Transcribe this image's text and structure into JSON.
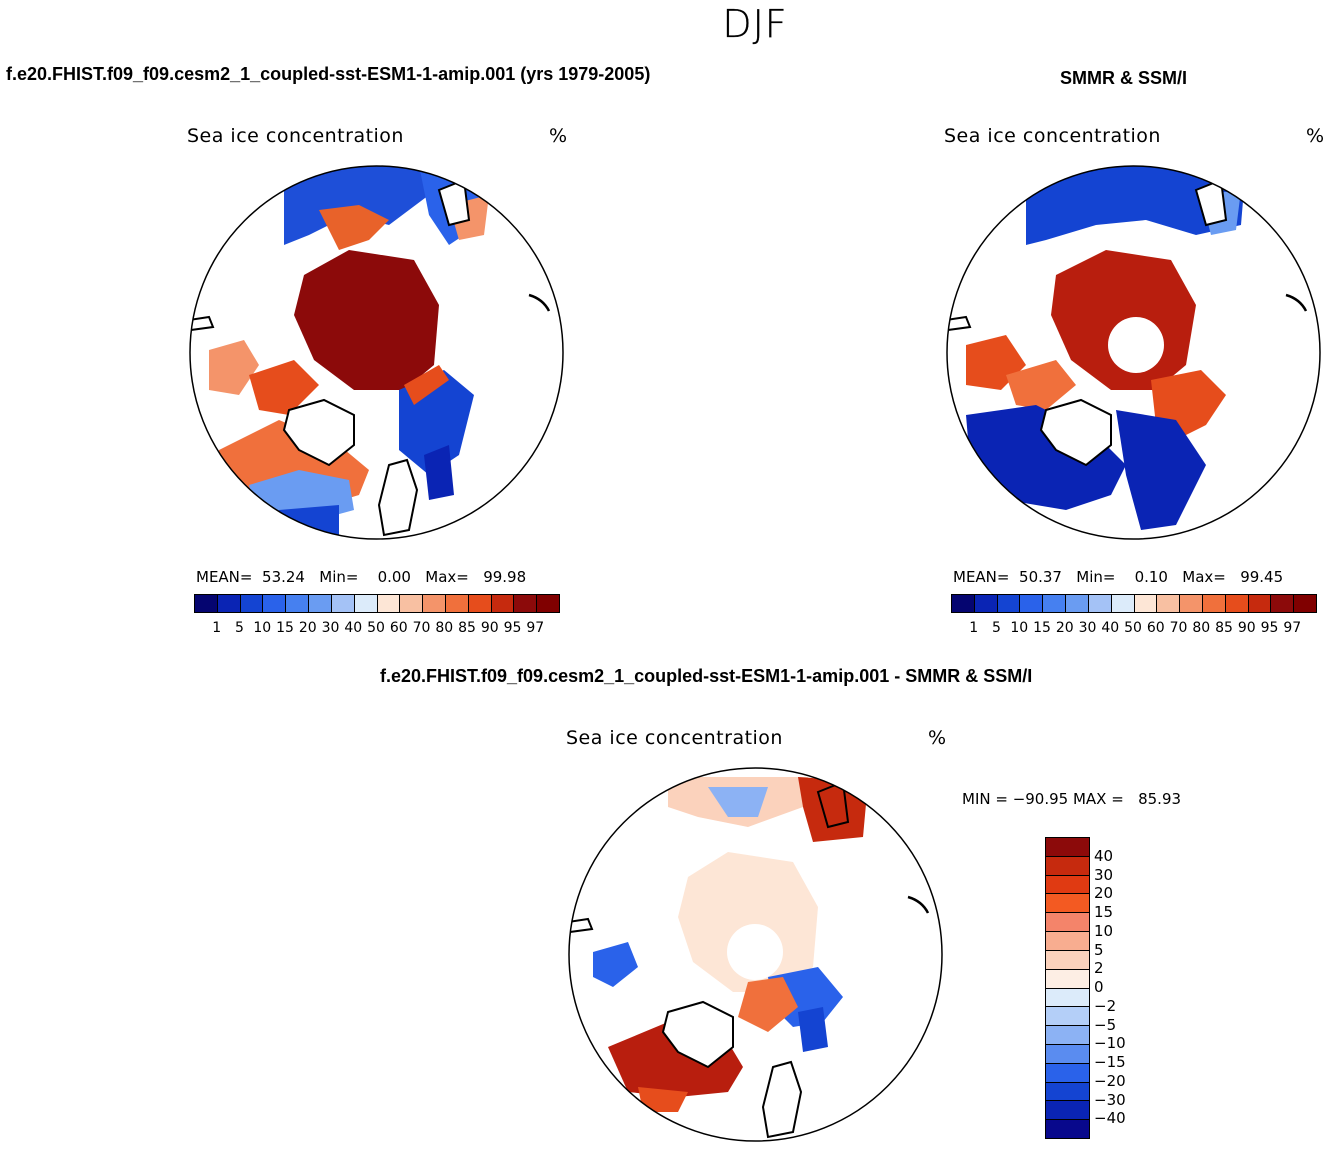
{
  "season": "DJF",
  "panels": [
    {
      "title": "f.e20.FHIST.f09_f09.cesm2_1_coupled-sst-ESM1-1-amip.001 (yrs 1979-2005)",
      "variable": "Sea ice concentration",
      "units": "%",
      "stats": {
        "mean_label": "MEAN=",
        "mean": "53.24",
        "min_label": "Min=",
        "min": "0.00",
        "max_label": "Max=",
        "max": "99.98"
      }
    },
    {
      "title": "SMMR & SSM/I",
      "variable": "Sea ice concentration",
      "units": "%",
      "stats": {
        "mean_label": "MEAN=",
        "mean": "50.37",
        "min_label": "Min=",
        "min": "0.10",
        "max_label": "Max=",
        "max": "99.45"
      }
    },
    {
      "title": "f.e20.FHIST.f09_f09.cesm2_1_coupled-sst-ESM1-1-amip.001 - SMMR & SSM/I",
      "variable": "Sea ice concentration",
      "units": "%",
      "minmax": "MIN = −90.95 MAX =   85.93"
    }
  ],
  "abs_colorbar": {
    "labels": [
      "1",
      "5",
      "10",
      "15",
      "20",
      "30",
      "40",
      "50",
      "60",
      "70",
      "80",
      "85",
      "90",
      "95",
      "97"
    ],
    "colors": [
      "#08088c",
      "#0a24b4",
      "#1444d2",
      "#2a62ea",
      "#4680f0",
      "#6a9cf2",
      "#a4c2f6",
      "#dcebfa",
      "#fde6d6",
      "#f8c0a2",
      "#f4946a",
      "#f0703c",
      "#e64d1c",
      "#c62a0e",
      "#8c0a0a"
    ]
  },
  "diff_colorbar": {
    "labels": [
      "40",
      "30",
      "20",
      "15",
      "10",
      "5",
      "2",
      "0",
      "−2",
      "−5",
      "−10",
      "−15",
      "−20",
      "−30",
      "−40"
    ],
    "colors": [
      "#8c0a0a",
      "#c62a0e",
      "#e03a12",
      "#f35a22",
      "#f4846a",
      "#f8ad90",
      "#fbd2bc",
      "#fdeee4",
      "#dcebfa",
      "#b4cff8",
      "#8cb2f4",
      "#5a8cf0",
      "#2a62ea",
      "#1444d2",
      "#0a24b4",
      "#08088c"
    ]
  }
}
